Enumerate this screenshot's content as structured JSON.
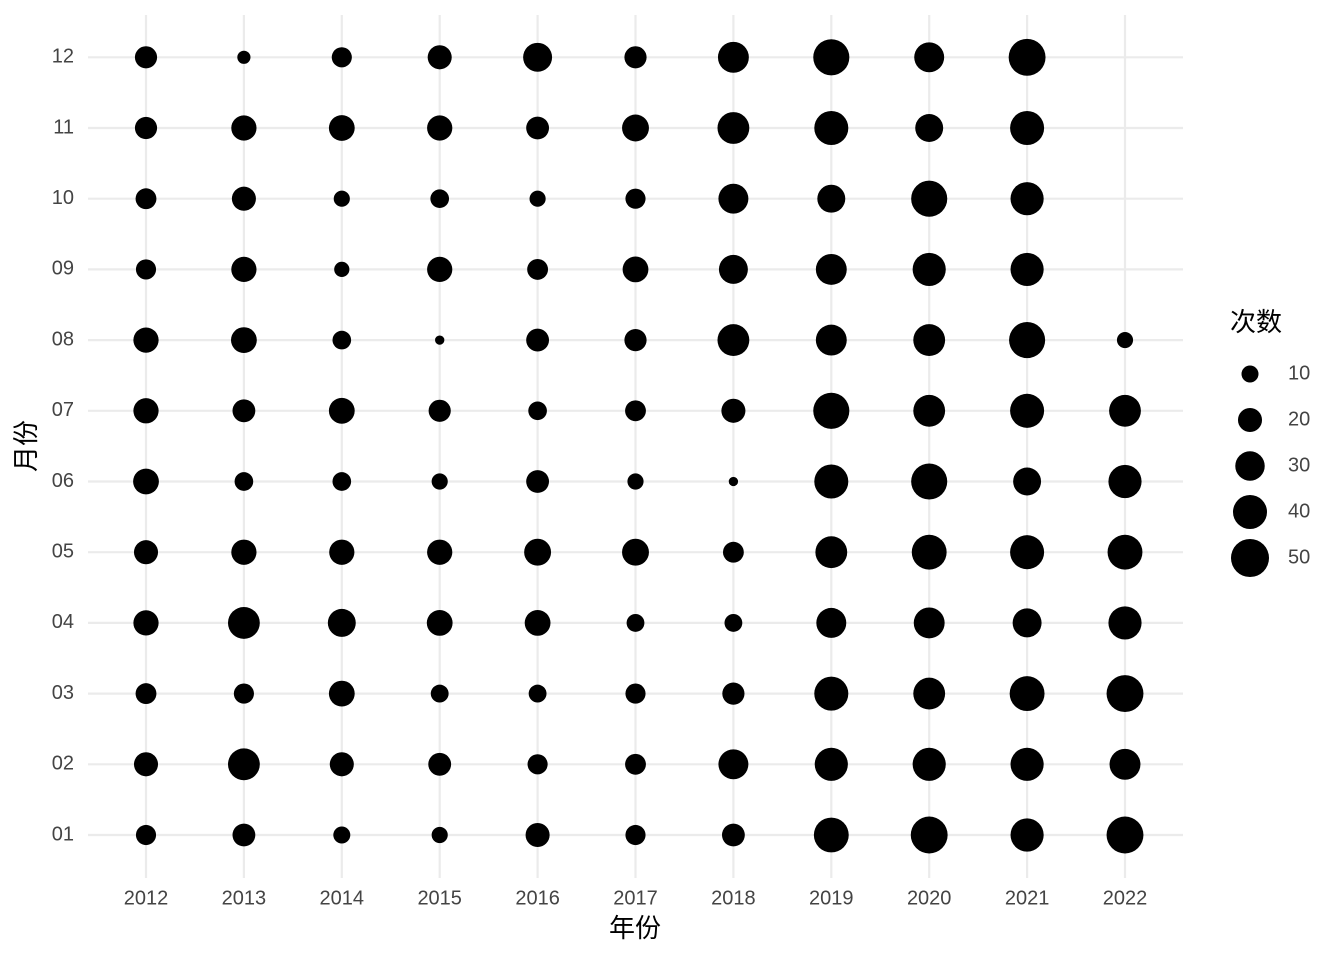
{
  "chart_data": {
    "type": "bubble",
    "x_label": "年份",
    "y_label": "月份",
    "x_categories": [
      "2012",
      "2013",
      "2014",
      "2015",
      "2016",
      "2017",
      "2018",
      "2019",
      "2020",
      "2021",
      "2022"
    ],
    "y_categories": [
      "01",
      "02",
      "03",
      "04",
      "05",
      "06",
      "07",
      "08",
      "09",
      "10",
      "11",
      "12"
    ],
    "values": [
      [
        14,
        18,
        10,
        9,
        20,
        14,
        18,
        42,
        47,
        38,
        47
      ],
      [
        20,
        35,
        20,
        18,
        14,
        15,
        31,
        38,
        38,
        38,
        33
      ],
      [
        15,
        14,
        23,
        11,
        11,
        14,
        17,
        40,
        35,
        42,
        47
      ],
      [
        22,
        35,
        27,
        23,
        23,
        11,
        11,
        31,
        33,
        29,
        38
      ],
      [
        20,
        22,
        22,
        22,
        25,
        25,
        15,
        35,
        42,
        40,
        42
      ],
      [
        23,
        12,
        12,
        9,
        18,
        9,
        3,
        40,
        45,
        27,
        38
      ],
      [
        22,
        18,
        23,
        17,
        12,
        15,
        20,
        45,
        35,
        40,
        35
      ],
      [
        22,
        23,
        12,
        3,
        18,
        17,
        35,
        33,
        35,
        45,
        9
      ],
      [
        14,
        22,
        8,
        22,
        15,
        23,
        29,
        33,
        38,
        38,
        null
      ],
      [
        15,
        20,
        9,
        12,
        9,
        14,
        31,
        27,
        45,
        38,
        null
      ],
      [
        17,
        22,
        23,
        22,
        18,
        25,
        35,
        40,
        27,
        40,
        null
      ],
      [
        17,
        6,
        14,
        20,
        29,
        17,
        33,
        45,
        31,
        47,
        null
      ]
    ],
    "color": "#000000",
    "grid": true,
    "size_legend": {
      "title": "次数",
      "values": [
        10,
        20,
        30,
        40,
        50
      ]
    }
  }
}
